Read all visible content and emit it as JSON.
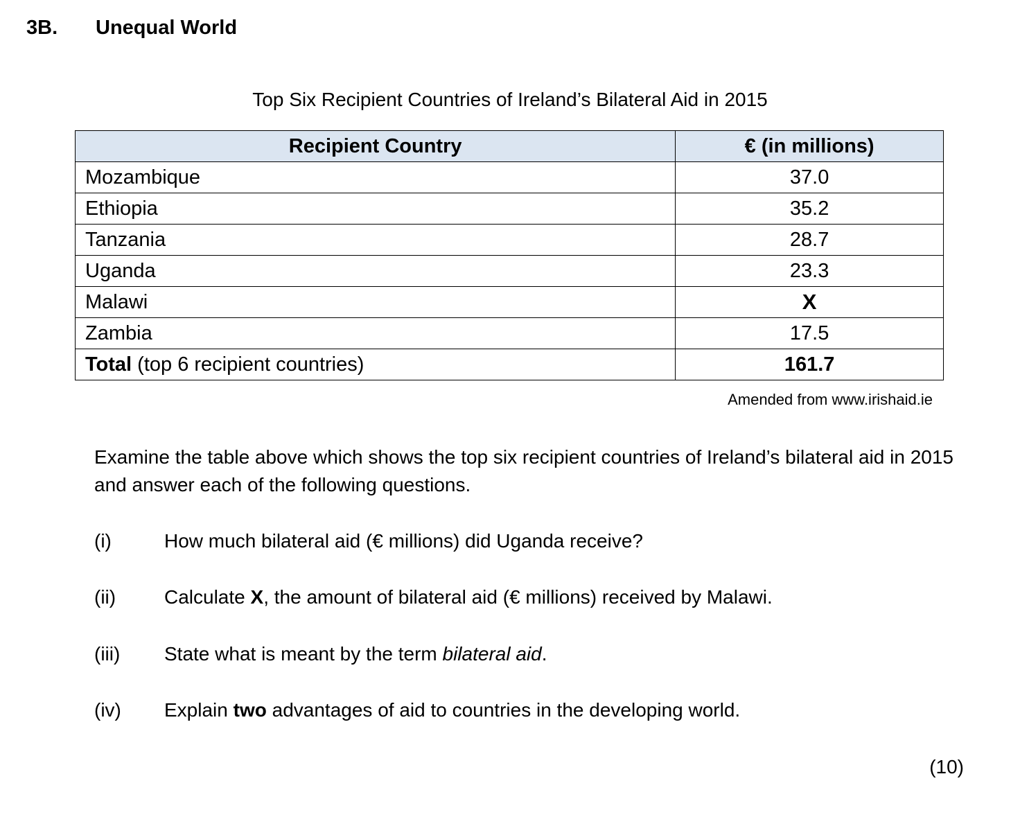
{
  "section": {
    "number": "3B.",
    "title": "Unequal World"
  },
  "table": {
    "title": "Top Six Recipient Countries of Ireland’s Bilateral Aid in 2015",
    "headers": [
      "Recipient Country",
      "€ (in millions)"
    ],
    "rows": [
      {
        "country": "Mozambique",
        "value": "37.0"
      },
      {
        "country": "Ethiopia",
        "value": "35.2"
      },
      {
        "country": "Tanzania",
        "value": "28.7"
      },
      {
        "country": "Uganda",
        "value": "23.3"
      },
      {
        "country": "Malawi",
        "value": "X"
      },
      {
        "country": "Zambia",
        "value": "17.5"
      }
    ],
    "total": {
      "label_bold": "Total",
      "label_rest": " (top 6 recipient countries)",
      "value": "161.7"
    },
    "source": "Amended from www.irishaid.ie"
  },
  "intro": "Examine the table above which shows the top six recipient countries of Ireland’s bilateral aid in 2015 and answer each of the following questions.",
  "questions": [
    {
      "num": "(i)",
      "text": "How much bilateral aid (€ millions) did Uganda receive?"
    },
    {
      "num": "(ii)",
      "pre": "Calculate ",
      "bold": "X",
      "post": ", the amount of bilateral aid (€ millions) received by Malawi."
    },
    {
      "num": "(iii)",
      "pre": "State what is meant by the term ",
      "italic": "bilateral aid",
      "post": "."
    },
    {
      "num": "(iv)",
      "pre": "Explain ",
      "bold": "two",
      "post": " advantages of aid to countries in the developing world."
    }
  ],
  "marks": "(10)"
}
